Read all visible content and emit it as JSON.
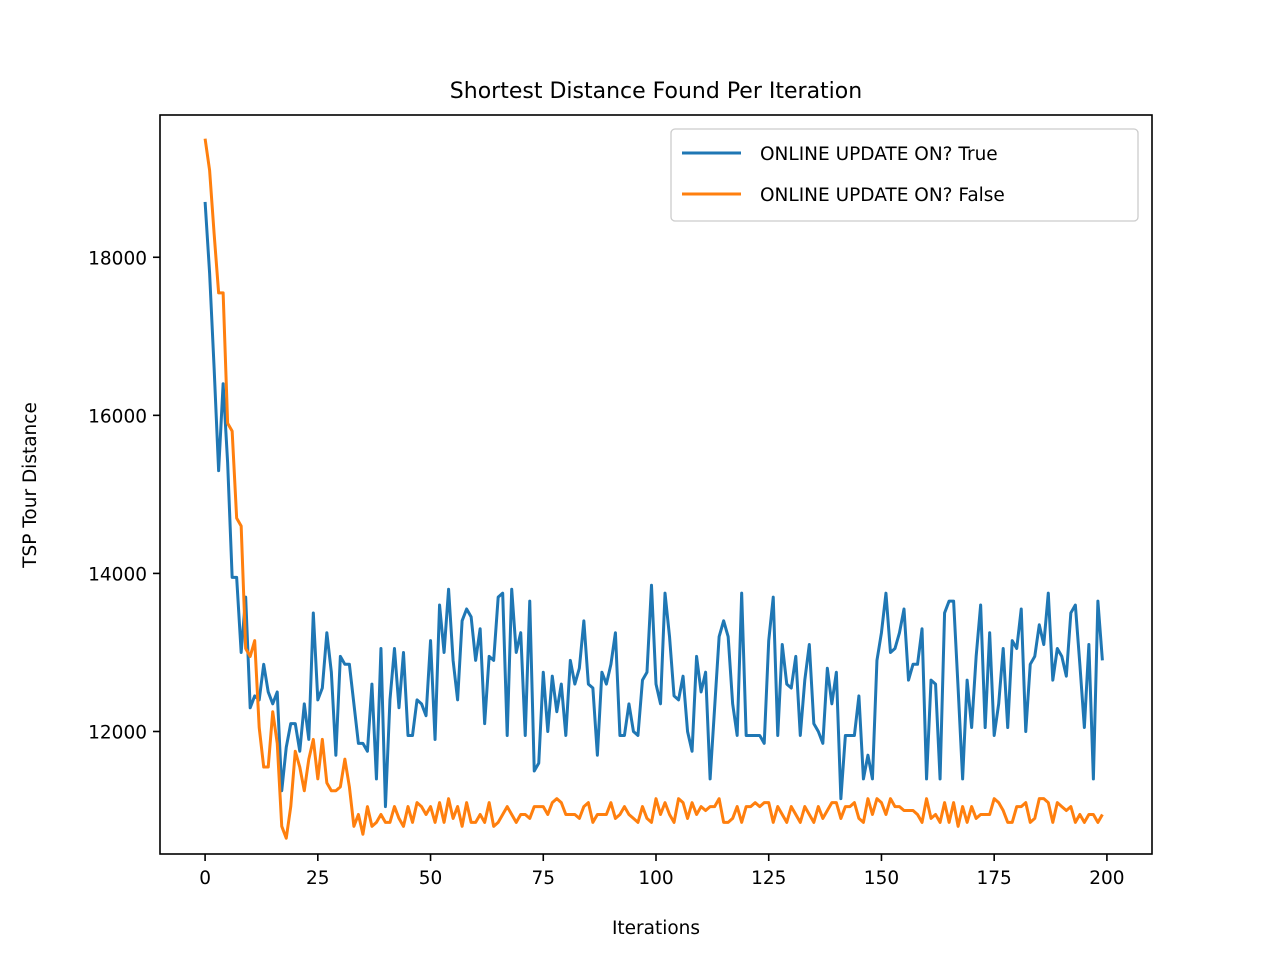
{
  "chart_data": {
    "type": "line",
    "title": "Shortest Distance Found Per Iteration",
    "xlabel": "Iterations",
    "ylabel": "TSP Tour Distance",
    "xlim": [
      -10,
      210
    ],
    "ylim": [
      10450,
      19800
    ],
    "xticks": [
      0,
      25,
      50,
      75,
      100,
      125,
      150,
      175,
      200
    ],
    "yticks": [
      12000,
      14000,
      16000,
      18000
    ],
    "legend_position": "top-right",
    "grid": false,
    "series": [
      {
        "name": "ONLINE UPDATE ON? True",
        "color": "#1f77b4",
        "x_start": 0,
        "values": [
          18700,
          17800,
          16600,
          15300,
          16400,
          15400,
          13950,
          13950,
          13000,
          13700,
          12300,
          12450,
          12400,
          12850,
          12500,
          12350,
          12500,
          11250,
          11800,
          12100,
          12100,
          11750,
          12350,
          11900,
          13500,
          12400,
          12550,
          13250,
          12750,
          11700,
          12950,
          12850,
          12850,
          12350,
          11850,
          11850,
          11750,
          12600,
          11400,
          13050,
          11050,
          12400,
          13050,
          12300,
          13000,
          11950,
          11950,
          12400,
          12350,
          12200,
          13150,
          11900,
          13600,
          13000,
          13800,
          12900,
          12400,
          13400,
          13550,
          13450,
          12900,
          13300,
          12100,
          12950,
          12900,
          13700,
          13750,
          11950,
          13800,
          13000,
          13250,
          11950,
          13650,
          11500,
          11600,
          12750,
          12000,
          12700,
          12250,
          12600,
          11950,
          12900,
          12600,
          12800,
          13400,
          12600,
          12550,
          11700,
          12750,
          12600,
          12850,
          13250,
          11950,
          11950,
          12350,
          12000,
          11950,
          12650,
          12750,
          13850,
          12600,
          12350,
          13750,
          13200,
          12450,
          12400,
          12700,
          12000,
          11750,
          12950,
          12500,
          12750,
          11400,
          12300,
          13200,
          13400,
          13200,
          12350,
          11950,
          13750,
          11950,
          11950,
          11950,
          11950,
          11850,
          13150,
          13700,
          11950,
          13100,
          12600,
          12550,
          12950,
          11950,
          12650,
          13100,
          12100,
          12000,
          11850,
          12800,
          12350,
          12750,
          11150,
          11950,
          11950,
          11950,
          12450,
          11400,
          11700,
          11400,
          12900,
          13250,
          13750,
          13000,
          13050,
          13250,
          13550,
          12650,
          12850,
          12850,
          13300,
          11400,
          12650,
          12600,
          11400,
          13500,
          13650,
          13650,
          12550,
          11400,
          12650,
          12050,
          12950,
          13600,
          12050,
          13250,
          11950,
          12350,
          13050,
          12050,
          13150,
          13050,
          13550,
          12000,
          12850,
          12950,
          13350,
          13100,
          13750,
          12650,
          13050,
          12950,
          12700,
          13500,
          13600,
          12850,
          12050,
          13100,
          11400,
          13650,
          12900
        ]
      },
      {
        "name": "ONLINE UPDATE ON? False",
        "color": "#ff7f0e",
        "x_start": 0,
        "values": [
          19500,
          19100,
          18300,
          17550,
          17550,
          15900,
          15800,
          14700,
          14600,
          13050,
          12950,
          13150,
          12050,
          11550,
          11550,
          12250,
          11850,
          10800,
          10650,
          11050,
          11750,
          11550,
          11250,
          11650,
          11900,
          11400,
          11900,
          11350,
          11250,
          11250,
          11300,
          11650,
          11300,
          10800,
          10950,
          10700,
          11050,
          10800,
          10850,
          10950,
          10850,
          10850,
          11050,
          10900,
          10800,
          11050,
          10850,
          11100,
          11050,
          10950,
          11050,
          10850,
          11100,
          10850,
          11150,
          10900,
          11050,
          10800,
          11100,
          10850,
          10850,
          10950,
          10850,
          11100,
          10800,
          10850,
          10950,
          11050,
          10950,
          10850,
          10950,
          10950,
          10900,
          11050,
          11050,
          11050,
          10950,
          11100,
          11150,
          11100,
          10950,
          10950,
          10950,
          10900,
          11050,
          11100,
          10850,
          10950,
          10950,
          10950,
          11100,
          10900,
          10950,
          11050,
          10950,
          10900,
          10850,
          11050,
          10900,
          10850,
          11150,
          10950,
          11100,
          10950,
          10850,
          11150,
          11100,
          10900,
          11100,
          10950,
          11050,
          11000,
          11050,
          11050,
          11150,
          10850,
          10850,
          10900,
          11050,
          10850,
          11050,
          11050,
          11100,
          11050,
          11100,
          11100,
          10850,
          11050,
          10950,
          10850,
          11050,
          10950,
          10850,
          11050,
          10950,
          10850,
          11050,
          10900,
          11000,
          11100,
          11100,
          10900,
          11050,
          11050,
          11100,
          10900,
          10850,
          11150,
          10950,
          11150,
          11100,
          10950,
          11150,
          11050,
          11050,
          11000,
          11000,
          11000,
          10950,
          10850,
          11150,
          10900,
          10950,
          10850,
          11100,
          10850,
          11100,
          10800,
          11050,
          10850,
          11050,
          10900,
          10950,
          10950,
          10950,
          11150,
          11100,
          11000,
          10850,
          10850,
          11050,
          11050,
          11100,
          10850,
          10900,
          11150,
          11150,
          11100,
          10850,
          11100,
          11050,
          11000,
          11050,
          10850,
          10950,
          10850,
          10950,
          10950,
          10850,
          10950
        ]
      }
    ]
  }
}
